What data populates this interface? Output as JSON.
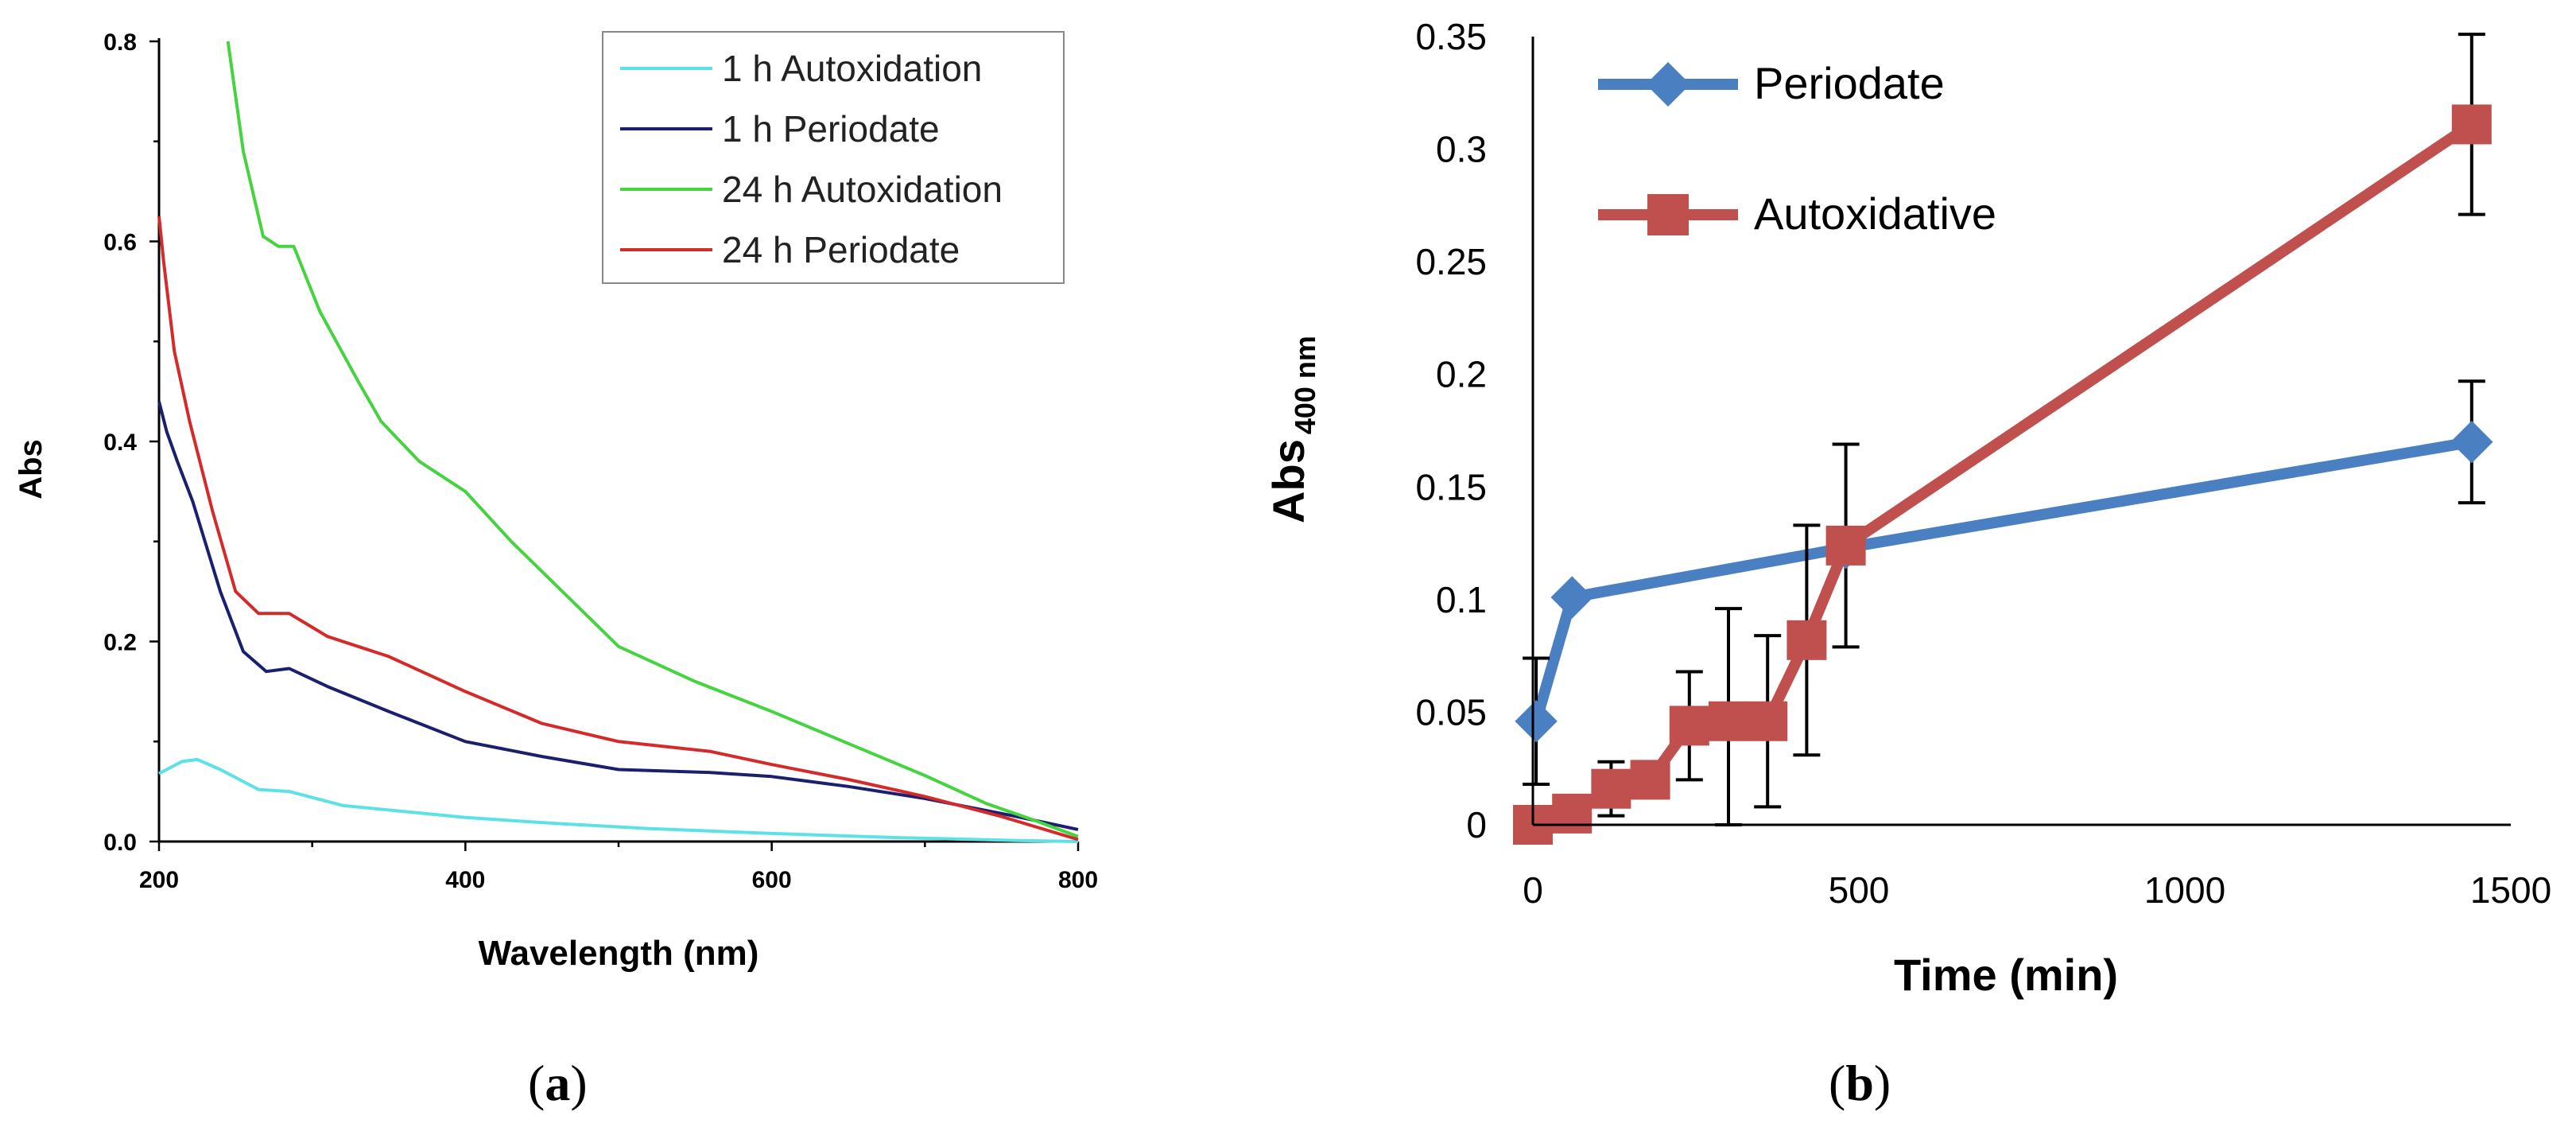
{
  "chart_data": [
    {
      "panel": "(a)",
      "panel_letter": "a",
      "type": "line",
      "title": "",
      "xlabel": "Wavelength (nm)",
      "ylabel": "Abs",
      "xlim": [
        200,
        800
      ],
      "ylim": [
        0,
        0.8
      ],
      "xticks": [
        200,
        400,
        600,
        800
      ],
      "yticks": [
        0.0,
        0.2,
        0.4,
        0.6,
        0.8
      ],
      "xtick_labels": [
        "200",
        "400",
        "600",
        "800"
      ],
      "ytick_labels": [
        "0.0",
        "0.2",
        "0.4",
        "0.6",
        "0.8"
      ],
      "grid": false,
      "legend_position": "top-right",
      "series": [
        {
          "name": "1 h Autoxidation",
          "color": "#5ce1e6",
          "x": [
            200,
            215,
            225,
            240,
            265,
            285,
            320,
            360,
            400,
            460,
            520,
            600,
            680,
            760,
            800
          ],
          "y": [
            0.068,
            0.08,
            0.082,
            0.072,
            0.052,
            0.05,
            0.036,
            0.03,
            0.024,
            0.018,
            0.013,
            0.008,
            0.004,
            0.001,
            0.0
          ]
        },
        {
          "name": "1 h Periodate",
          "color": "#1a1f6e",
          "x": [
            200,
            205,
            212,
            222,
            240,
            255,
            270,
            285,
            310,
            350,
            400,
            450,
            500,
            560,
            600,
            650,
            700,
            760,
            800
          ],
          "y": [
            0.44,
            0.41,
            0.38,
            0.34,
            0.25,
            0.19,
            0.17,
            0.173,
            0.155,
            0.13,
            0.1,
            0.085,
            0.072,
            0.069,
            0.065,
            0.055,
            0.043,
            0.025,
            0.012
          ]
        },
        {
          "name": "24 h Autoxidation",
          "color": "#45d440",
          "x": [
            245,
            255,
            268,
            278,
            288,
            305,
            330,
            345,
            370,
            400,
            430,
            470,
            500,
            550,
            600,
            650,
            700,
            740,
            770,
            800
          ],
          "y": [
            0.8,
            0.69,
            0.605,
            0.595,
            0.595,
            0.53,
            0.46,
            0.42,
            0.38,
            0.35,
            0.3,
            0.24,
            0.195,
            0.16,
            0.13,
            0.098,
            0.066,
            0.038,
            0.022,
            0.005
          ]
        },
        {
          "name": "24 h Periodate",
          "color": "#d42a2a",
          "x": [
            200,
            203,
            210,
            220,
            235,
            250,
            265,
            285,
            310,
            350,
            400,
            450,
            500,
            560,
            600,
            650,
            700,
            750,
            800
          ],
          "y": [
            0.625,
            0.58,
            0.49,
            0.42,
            0.33,
            0.25,
            0.228,
            0.228,
            0.205,
            0.185,
            0.15,
            0.118,
            0.1,
            0.09,
            0.077,
            0.062,
            0.045,
            0.025,
            0.002
          ]
        }
      ]
    },
    {
      "panel": "(b)",
      "panel_letter": "b",
      "type": "line",
      "title": "",
      "xlabel": "Time (min)",
      "ylabel": "Abs",
      "ylabel_sub": "400 nm",
      "xlim": [
        0,
        1500
      ],
      "ylim": [
        0,
        0.35
      ],
      "xticks": [
        0,
        500,
        1000,
        1500
      ],
      "yticks": [
        0,
        0.05,
        0.1,
        0.15,
        0.2,
        0.25,
        0.3,
        0.35
      ],
      "xtick_labels": [
        "0",
        "500",
        "1000",
        "1500"
      ],
      "ytick_labels": [
        "0",
        "0.05",
        "0.1",
        "0.15",
        "0.2",
        "0.25",
        "0.3",
        "0.35"
      ],
      "grid": false,
      "legend_position": "top-left",
      "series": [
        {
          "name": "Periodate",
          "color": "#4a7fc1",
          "marker": "diamond",
          "x": [
            5,
            60,
            480,
            1440
          ],
          "y": [
            0.046,
            0.101,
            0.123,
            0.17
          ],
          "err": [
            0.028,
            0.0,
            0.0,
            0.027
          ]
        },
        {
          "name": "Autoxidative",
          "color": "#c0504d",
          "marker": "square",
          "x": [
            0,
            60,
            120,
            180,
            240,
            300,
            360,
            420,
            480,
            1440
          ],
          "y": [
            0.0,
            0.005,
            0.016,
            0.02,
            0.044,
            0.046,
            0.046,
            0.082,
            0.124,
            0.311
          ],
          "err": [
            0.0,
            0.0,
            0.012,
            0.008,
            0.024,
            0.05,
            0.038,
            0.051,
            0.045,
            0.04
          ]
        }
      ]
    }
  ]
}
